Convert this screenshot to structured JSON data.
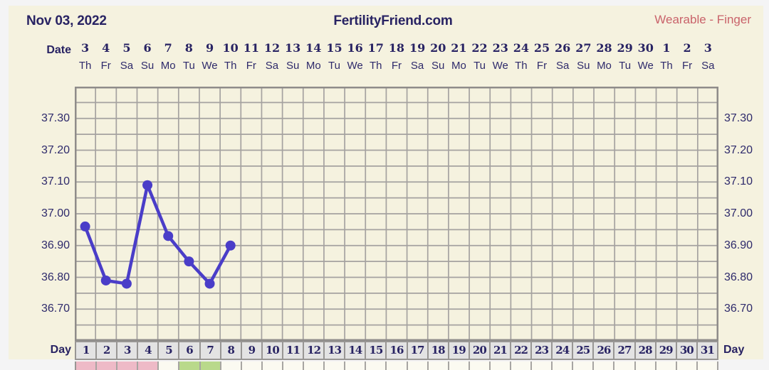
{
  "header": {
    "chart_date": "Nov 03, 2022",
    "site_title": "FertilityFriend.com",
    "mode_label": "Wearable - Finger"
  },
  "date_axis": {
    "label": "Date",
    "dates": [
      "3",
      "4",
      "5",
      "6",
      "7",
      "8",
      "9",
      "10",
      "11",
      "12",
      "13",
      "14",
      "15",
      "16",
      "17",
      "18",
      "19",
      "20",
      "21",
      "22",
      "23",
      "24",
      "25",
      "26",
      "27",
      "28",
      "29",
      "30",
      "1",
      "2",
      "3"
    ],
    "weekdays": [
      "Th",
      "Fr",
      "Sa",
      "Su",
      "Mo",
      "Tu",
      "We",
      "Th",
      "Fr",
      "Sa",
      "Su",
      "Mo",
      "Tu",
      "We",
      "Th",
      "Fr",
      "Sa",
      "Su",
      "Mo",
      "Tu",
      "We",
      "Th",
      "Fr",
      "Sa",
      "Su",
      "Mo",
      "Tu",
      "We",
      "Th",
      "Fr",
      "Sa"
    ]
  },
  "day_axis": {
    "label_left": "Day",
    "label_right": "Day",
    "days": [
      "1",
      "2",
      "3",
      "4",
      "5",
      "6",
      "7",
      "8",
      "9",
      "10",
      "11",
      "12",
      "13",
      "14",
      "15",
      "16",
      "17",
      "18",
      "19",
      "20",
      "21",
      "22",
      "23",
      "24",
      "25",
      "26",
      "27",
      "28",
      "29",
      "30",
      "31"
    ]
  },
  "day_markers": {
    "pink_days": [
      1,
      2,
      3,
      4
    ],
    "green_days": [
      6,
      7
    ]
  },
  "chart_data": {
    "type": "line",
    "x_label": "Day",
    "x_days": [
      1,
      2,
      3,
      4,
      5,
      6,
      7,
      8
    ],
    "temps": [
      36.96,
      36.79,
      36.78,
      37.09,
      36.93,
      36.85,
      36.78,
      36.9
    ],
    "y_ticks": [
      "37.30",
      "37.20",
      "37.10",
      "37.00",
      "36.90",
      "36.80",
      "36.70"
    ],
    "ylim": [
      36.6,
      37.4
    ],
    "y_grid_step": 0.05,
    "x_columns": 31,
    "grid": true,
    "legend": "none"
  },
  "colors": {
    "panel_bg": "#f5f2df",
    "navy_text": "#282363",
    "mode_text": "#c9626a",
    "grid_line": "#a5a2a0",
    "plot_border": "#8f8c8a",
    "temp_line": "#4a3dc8",
    "day_cell_bg": "#e3e3e3",
    "marker_pink": "#eebac7",
    "marker_green": "#b9d98b",
    "marker_plain": "#fbfaf1"
  }
}
